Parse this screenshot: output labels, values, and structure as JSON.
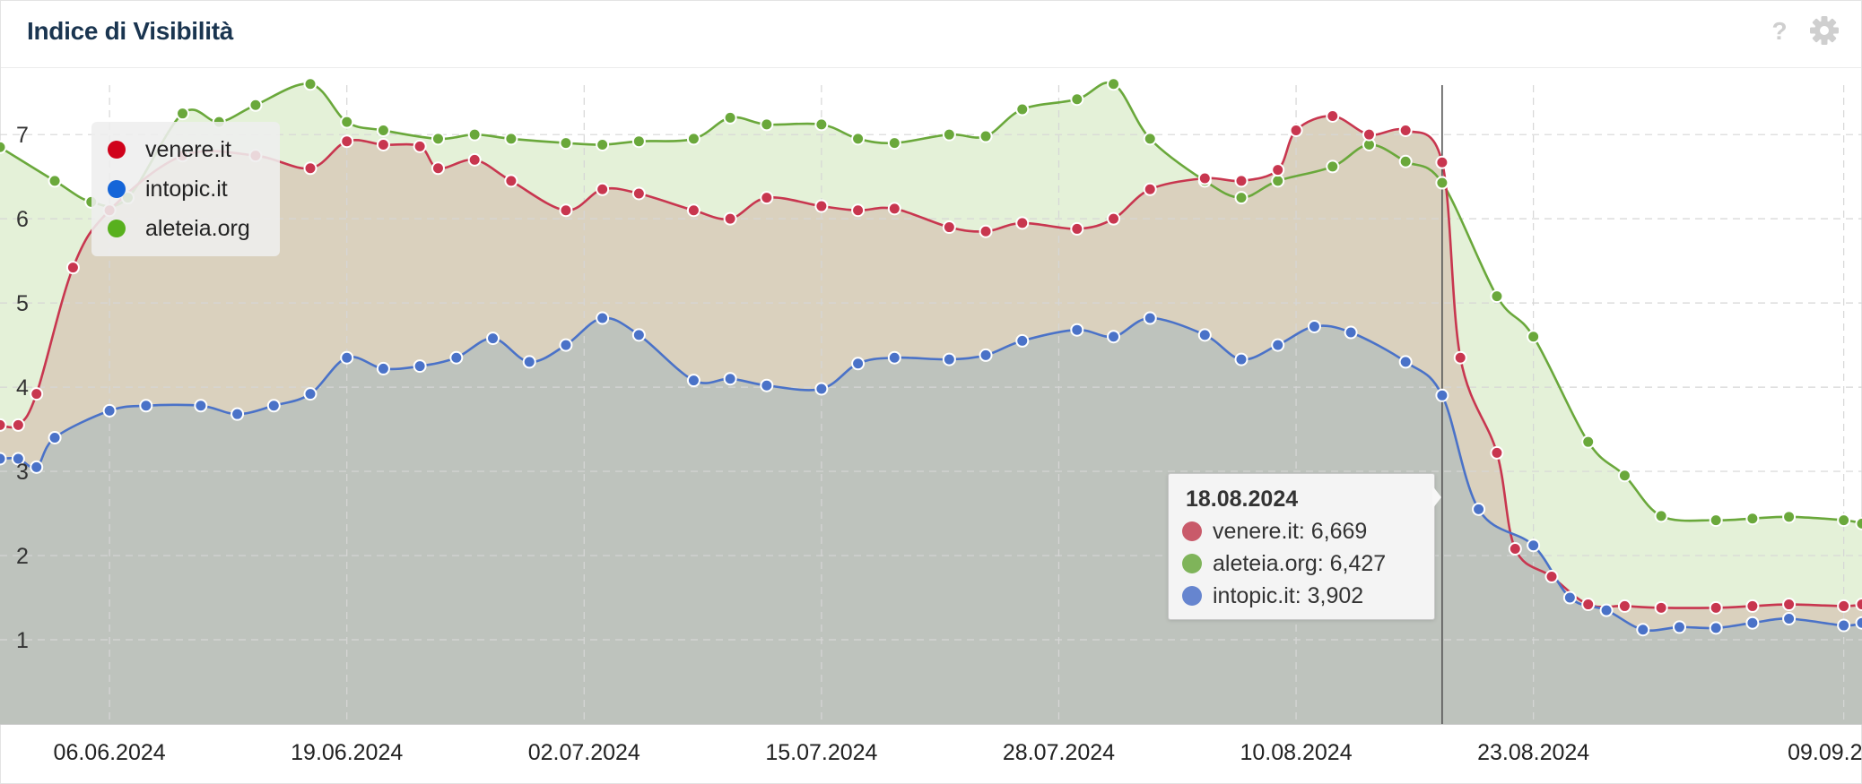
{
  "header": {
    "title": "Indice di Visibilità",
    "help_icon": "help-circle-icon",
    "settings_icon": "gear-icon"
  },
  "colors": {
    "venere": "#c8364f",
    "intopic": "#4a72c8",
    "aleteia": "#6aa83b",
    "legend_venere": "#d0021b",
    "legend_intopic": "#1565d8",
    "legend_aleteia": "#58b01e"
  },
  "legend": [
    {
      "label": "venere.it",
      "color": "#d0021b"
    },
    {
      "label": "intopic.it",
      "color": "#1565d8"
    },
    {
      "label": "aleteia.org",
      "color": "#58b01e"
    }
  ],
  "tooltip": {
    "date": "18.08.2024",
    "rows": [
      {
        "text": "venere.it: 6,669",
        "color": "#c95a6a"
      },
      {
        "text": "aleteia.org: 6,427",
        "color": "#7fb45a"
      },
      {
        "text": "intopic.it: 3,902",
        "color": "#6685cf"
      }
    ]
  },
  "chart_data": {
    "type": "area",
    "x_ticks": [
      "06.06.2024",
      "19.06.2024",
      "02.07.2024",
      "15.07.2024",
      "28.07.2024",
      "10.08.2024",
      "23.08.2024",
      "09.09.2024"
    ],
    "y_ticks": [
      1,
      2,
      3,
      4,
      5,
      6,
      7
    ],
    "ylim": [
      0,
      7.8
    ],
    "x_start": "2024-05-31",
    "x_end": "2024-09-10",
    "crosshair": "2024-08-18",
    "series": [
      {
        "name": "aleteia.org",
        "color": "#6aa83b",
        "fill": "#e4f1d8",
        "dates": [
          "2024-05-31",
          "2024-06-03",
          "2024-06-05",
          "2024-06-07",
          "2024-06-10",
          "2024-06-12",
          "2024-06-14",
          "2024-06-17",
          "2024-06-19",
          "2024-06-21",
          "2024-06-24",
          "2024-06-26",
          "2024-06-28",
          "2024-07-01",
          "2024-07-03",
          "2024-07-05",
          "2024-07-08",
          "2024-07-10",
          "2024-07-12",
          "2024-07-15",
          "2024-07-17",
          "2024-07-19",
          "2024-07-22",
          "2024-07-24",
          "2024-07-26",
          "2024-07-29",
          "2024-07-31",
          "2024-08-02",
          "2024-08-05",
          "2024-08-07",
          "2024-08-09",
          "2024-08-12",
          "2024-08-14",
          "2024-08-16",
          "2024-08-18",
          "2024-08-21",
          "2024-08-23",
          "2024-08-26",
          "2024-08-28",
          "2024-08-30",
          "2024-09-02",
          "2024-09-04",
          "2024-09-06",
          "2024-09-09",
          "2024-09-10"
        ],
        "values": [
          6.85,
          6.45,
          6.2,
          6.25,
          7.25,
          7.15,
          7.35,
          7.6,
          7.15,
          7.05,
          6.95,
          7.0,
          6.95,
          6.9,
          6.88,
          6.92,
          6.95,
          7.2,
          7.12,
          7.12,
          6.95,
          6.9,
          7.0,
          6.98,
          7.3,
          7.42,
          7.6,
          6.95,
          6.45,
          6.25,
          6.45,
          6.62,
          6.88,
          6.68,
          6.427,
          5.08,
          4.6,
          3.35,
          2.95,
          2.47,
          2.42,
          2.44,
          2.46,
          2.42,
          2.38
        ]
      },
      {
        "name": "venere.it",
        "color": "#c8364f",
        "fill": "#dad1be",
        "fill_over": "#f3dadd",
        "dates": [
          "2024-05-31",
          "2024-06-01",
          "2024-06-02",
          "2024-06-04",
          "2024-06-06",
          "2024-06-10",
          "2024-06-14",
          "2024-06-17",
          "2024-06-19",
          "2024-06-21",
          "2024-06-23",
          "2024-06-24",
          "2024-06-26",
          "2024-06-28",
          "2024-07-01",
          "2024-07-03",
          "2024-07-05",
          "2024-07-08",
          "2024-07-10",
          "2024-07-12",
          "2024-07-15",
          "2024-07-17",
          "2024-07-19",
          "2024-07-22",
          "2024-07-24",
          "2024-07-26",
          "2024-07-29",
          "2024-07-31",
          "2024-08-02",
          "2024-08-05",
          "2024-08-07",
          "2024-08-09",
          "2024-08-10",
          "2024-08-12",
          "2024-08-14",
          "2024-08-16",
          "2024-08-18",
          "2024-08-19",
          "2024-08-21",
          "2024-08-22",
          "2024-08-24",
          "2024-08-26",
          "2024-08-28",
          "2024-08-30",
          "2024-09-02",
          "2024-09-04",
          "2024-09-06",
          "2024-09-09",
          "2024-09-10"
        ],
        "values": [
          3.55,
          3.55,
          3.92,
          5.42,
          6.1,
          6.75,
          6.75,
          6.6,
          6.92,
          6.88,
          6.86,
          6.6,
          6.7,
          6.45,
          6.1,
          6.35,
          6.3,
          6.1,
          6.0,
          6.25,
          6.15,
          6.1,
          6.12,
          5.9,
          5.85,
          5.95,
          5.88,
          6.0,
          6.35,
          6.48,
          6.45,
          6.58,
          7.05,
          7.22,
          7.0,
          7.05,
          6.669,
          4.35,
          3.22,
          2.08,
          1.75,
          1.42,
          1.4,
          1.38,
          1.38,
          1.4,
          1.42,
          1.4,
          1.42
        ]
      },
      {
        "name": "intopic.it",
        "color": "#4a72c8",
        "fill": "#bec3bd",
        "dates": [
          "2024-05-31",
          "2024-06-01",
          "2024-06-02",
          "2024-06-03",
          "2024-06-06",
          "2024-06-08",
          "2024-06-11",
          "2024-06-13",
          "2024-06-15",
          "2024-06-17",
          "2024-06-19",
          "2024-06-21",
          "2024-06-23",
          "2024-06-25",
          "2024-06-27",
          "2024-06-29",
          "2024-07-01",
          "2024-07-03",
          "2024-07-05",
          "2024-07-08",
          "2024-07-10",
          "2024-07-12",
          "2024-07-15",
          "2024-07-17",
          "2024-07-19",
          "2024-07-22",
          "2024-07-24",
          "2024-07-26",
          "2024-07-29",
          "2024-07-31",
          "2024-08-02",
          "2024-08-05",
          "2024-08-07",
          "2024-08-09",
          "2024-08-11",
          "2024-08-13",
          "2024-08-16",
          "2024-08-18",
          "2024-08-20",
          "2024-08-23",
          "2024-08-25",
          "2024-08-27",
          "2024-08-29",
          "2024-08-31",
          "2024-09-02",
          "2024-09-04",
          "2024-09-06",
          "2024-09-09",
          "2024-09-10"
        ],
        "values": [
          3.15,
          3.15,
          3.05,
          3.4,
          3.72,
          3.78,
          3.78,
          3.68,
          3.78,
          3.92,
          4.35,
          4.22,
          4.25,
          4.35,
          4.58,
          4.3,
          4.5,
          4.82,
          4.62,
          4.08,
          4.1,
          4.02,
          3.98,
          4.28,
          4.35,
          4.33,
          4.38,
          4.55,
          4.68,
          4.6,
          4.82,
          4.62,
          4.33,
          4.5,
          4.72,
          4.65,
          4.3,
          3.902,
          2.55,
          2.12,
          1.5,
          1.35,
          1.12,
          1.15,
          1.14,
          1.2,
          1.25,
          1.17,
          1.2
        ]
      }
    ]
  }
}
